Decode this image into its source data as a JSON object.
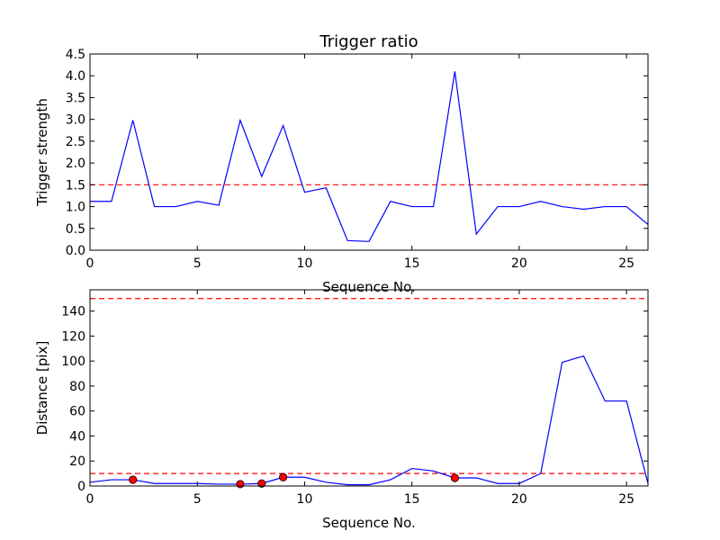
{
  "chart_data": [
    {
      "type": "line",
      "title": "Trigger ratio",
      "xlabel": "Sequence No.",
      "ylabel": "Trigger strength",
      "xlim": [
        0,
        26
      ],
      "ylim": [
        0,
        4.5
      ],
      "xticks": [
        0,
        5,
        10,
        15,
        20,
        25
      ],
      "xtick_labels": [
        "0",
        "5",
        "10",
        "15",
        "20",
        "25"
      ],
      "yticks": [
        0,
        0.5,
        1,
        1.5,
        2,
        2.5,
        3,
        3.5,
        4,
        4.5
      ],
      "ytick_labels": [
        "0.0",
        "0.5",
        "1.0",
        "1.5",
        "2.0",
        "2.5",
        "3.0",
        "3.5",
        "4.0",
        "4.5"
      ],
      "grid": false,
      "series": [
        {
          "color": "#0000ff",
          "x": [
            0,
            1,
            2,
            3,
            4,
            5,
            6,
            7,
            8,
            9,
            10,
            11,
            12,
            13,
            14,
            15,
            16,
            17,
            18,
            19,
            20,
            21,
            22,
            23,
            24,
            25,
            26
          ],
          "y": [
            1.12,
            1.12,
            2.98,
            1.0,
            1.0,
            1.12,
            1.03,
            2.98,
            1.69,
            2.86,
            1.33,
            1.43,
            0.22,
            0.2,
            1.12,
            1.0,
            1.0,
            4.1,
            0.37,
            1.0,
            1.0,
            1.12,
            1.0,
            0.94,
            1.0,
            1.0,
            0.59
          ]
        }
      ],
      "hlines": [
        {
          "y": 1.5,
          "color": "#ff0000",
          "style": "dashed"
        }
      ]
    },
    {
      "type": "line",
      "title": "",
      "xlabel": "Sequence No.",
      "ylabel": "Distance [pix]",
      "xlim": [
        0,
        26
      ],
      "ylim": [
        0,
        157
      ],
      "xticks": [
        0,
        5,
        10,
        15,
        20,
        25
      ],
      "xtick_labels": [
        "0",
        "5",
        "10",
        "15",
        "20",
        "25"
      ],
      "yticks": [
        0,
        20,
        40,
        60,
        80,
        100,
        120,
        140
      ],
      "ytick_labels": [
        "0",
        "20",
        "40",
        "60",
        "80",
        "100",
        "120",
        "140"
      ],
      "grid": false,
      "series": [
        {
          "color": "#0000ff",
          "x": [
            0,
            1,
            2,
            3,
            4,
            5,
            6,
            7,
            8,
            9,
            10,
            11,
            12,
            13,
            14,
            15,
            16,
            17,
            18,
            19,
            20,
            21,
            22,
            23,
            24,
            25,
            26
          ],
          "y": [
            3,
            5,
            5,
            2,
            2,
            2,
            1.5,
            1.5,
            2,
            7,
            7,
            3,
            1,
            1,
            5,
            14,
            12,
            6.5,
            6.5,
            2,
            2,
            10,
            99,
            104,
            68,
            68,
            2
          ]
        }
      ],
      "markers": {
        "color": "#ff0000",
        "x": [
          2,
          7,
          8,
          9,
          17
        ],
        "y": [
          5,
          1.5,
          2,
          7,
          6.5
        ]
      },
      "hlines": [
        {
          "y": 10,
          "color": "#ff0000",
          "style": "dashed"
        },
        {
          "y": 150,
          "color": "#ff0000",
          "style": "dashed"
        }
      ]
    }
  ]
}
